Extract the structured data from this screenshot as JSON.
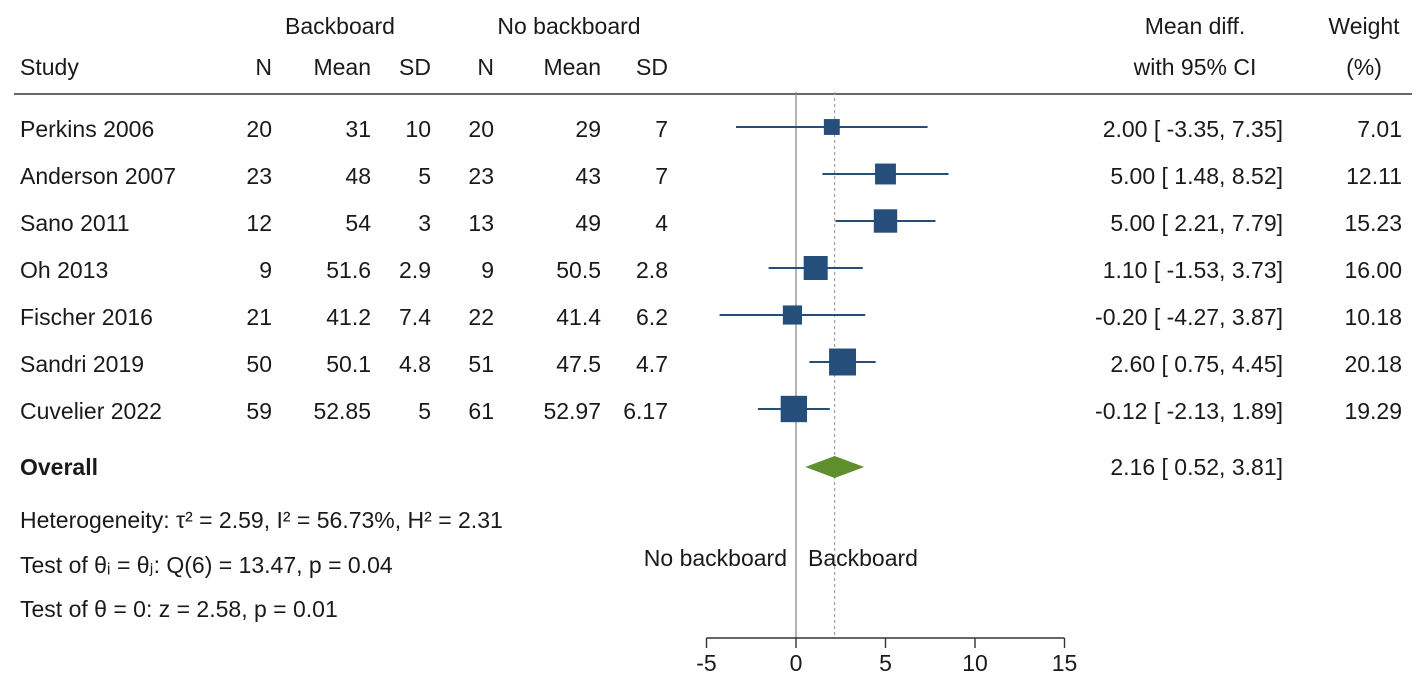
{
  "header": {
    "group1": "Backboard",
    "group2": "No backboard",
    "effect_line1": "Mean diff.",
    "effect_line2": "with 95% CI",
    "weight_line1": "Weight",
    "weight_line2": "(%)",
    "col_study": "Study",
    "col_n1": "N",
    "col_mean1": "Mean",
    "col_sd1": "SD",
    "col_n2": "N",
    "col_mean2": "Mean",
    "col_sd2": "SD"
  },
  "rows": [
    {
      "study": "Perkins 2006",
      "n1": "20",
      "mean1": "31",
      "sd1": "10",
      "n2": "20",
      "mean2": "29",
      "sd2": "7",
      "ci_text": "2.00 [ -3.35, 7.35]",
      "weight_text": "7.01"
    },
    {
      "study": "Anderson 2007",
      "n1": "23",
      "mean1": "48",
      "sd1": "5",
      "n2": "23",
      "mean2": "43",
      "sd2": "7",
      "ci_text": "5.00 [ 1.48, 8.52]",
      "weight_text": "12.11"
    },
    {
      "study": "Sano 2011",
      "n1": "12",
      "mean1": "54",
      "sd1": "3",
      "n2": "13",
      "mean2": "49",
      "sd2": "4",
      "ci_text": "5.00 [ 2.21, 7.79]",
      "weight_text": "15.23"
    },
    {
      "study": "Oh 2013",
      "n1": "9",
      "mean1": "51.6",
      "sd1": "2.9",
      "n2": "9",
      "mean2": "50.5",
      "sd2": "2.8",
      "ci_text": "1.10 [ -1.53, 3.73]",
      "weight_text": "16.00"
    },
    {
      "study": "Fischer 2016",
      "n1": "21",
      "mean1": "41.2",
      "sd1": "7.4",
      "n2": "22",
      "mean2": "41.4",
      "sd2": "6.2",
      "ci_text": "-0.20 [ -4.27, 3.87]",
      "weight_text": "10.18"
    },
    {
      "study": "Sandri 2019",
      "n1": "50",
      "mean1": "50.1",
      "sd1": "4.8",
      "n2": "51",
      "mean2": "47.5",
      "sd2": "4.7",
      "ci_text": "2.60 [ 0.75, 4.45]",
      "weight_text": "20.18"
    },
    {
      "study": "Cuvelier 2022",
      "n1": "59",
      "mean1": "52.85",
      "sd1": "5",
      "n2": "61",
      "mean2": "52.97",
      "sd2": "6.17",
      "ci_text": "-0.12 [ -2.13, 1.89]",
      "weight_text": "19.29"
    }
  ],
  "overall": {
    "label": "Overall",
    "ci_text": "2.16 [ 0.52, 3.81]"
  },
  "stats": {
    "heterogeneity": "Heterogeneity: τ² = 2.59, I² = 56.73%, H² = 2.31",
    "test_ij": "Test of θᵢ = θⱼ: Q(6) = 13.47, p = 0.04",
    "test_zero": "Test of θ = 0: z = 2.58, p = 0.01"
  },
  "favors": {
    "left": "No backboard",
    "right": "Backboard"
  },
  "chart_data": {
    "type": "forest",
    "xlim": [
      -5,
      15
    ],
    "xticks": [
      -5,
      0,
      5,
      10,
      15
    ],
    "null_line": 0,
    "marker_color": "#254e7a",
    "diamond_color": "#5e8f2c",
    "studies": [
      {
        "name": "Perkins 2006",
        "estimate": 2.0,
        "lower": -3.35,
        "upper": 7.35,
        "weight": 7.01
      },
      {
        "name": "Anderson 2007",
        "estimate": 5.0,
        "lower": 1.48,
        "upper": 8.52,
        "weight": 12.11
      },
      {
        "name": "Sano 2011",
        "estimate": 5.0,
        "lower": 2.21,
        "upper": 7.79,
        "weight": 15.23
      },
      {
        "name": "Oh 2013",
        "estimate": 1.1,
        "lower": -1.53,
        "upper": 3.73,
        "weight": 16.0
      },
      {
        "name": "Fischer 2016",
        "estimate": -0.2,
        "lower": -4.27,
        "upper": 3.87,
        "weight": 10.18
      },
      {
        "name": "Sandri 2019",
        "estimate": 2.6,
        "lower": 0.75,
        "upper": 4.45,
        "weight": 20.18
      },
      {
        "name": "Cuvelier 2022",
        "estimate": -0.12,
        "lower": -2.13,
        "upper": 1.89,
        "weight": 19.29
      }
    ],
    "overall": {
      "estimate": 2.16,
      "lower": 0.52,
      "upper": 3.81
    }
  }
}
